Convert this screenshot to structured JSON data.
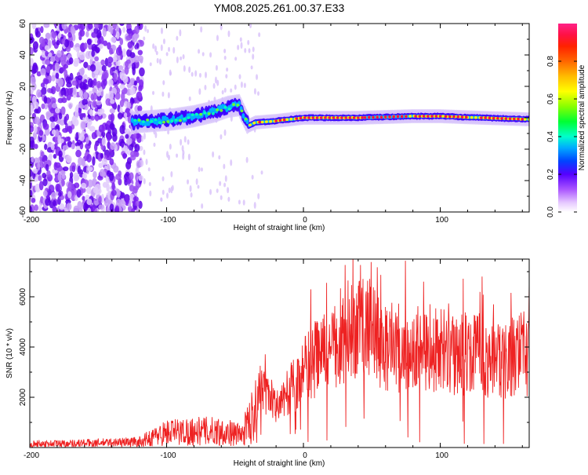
{
  "chart_data": [
    {
      "type": "heatmap",
      "title": "YM08.2025.261.00.37.E33",
      "xlabel": "Height of straight line (km)",
      "ylabel": "Frequency (Hz)",
      "xlim": [
        -200,
        165
      ],
      "ylim": [
        -60,
        60
      ],
      "xticks": [
        -200,
        -100,
        0,
        100
      ],
      "yticks": [
        60,
        40,
        20,
        0,
        -20,
        -40,
        -60
      ],
      "colorbar": {
        "label": "Normalized spectral amplitude",
        "range": [
          0,
          1
        ],
        "ticks": [
          0.0,
          0.2,
          0.4,
          0.6,
          0.8
        ]
      },
      "ridge": [
        {
          "x": -125,
          "y": -3
        },
        {
          "x": -110,
          "y": -2
        },
        {
          "x": -95,
          "y": -1
        },
        {
          "x": -80,
          "y": 1
        },
        {
          "x": -65,
          "y": 4
        },
        {
          "x": -55,
          "y": 7
        },
        {
          "x": -47,
          "y": 8
        },
        {
          "x": -40,
          "y": -5
        },
        {
          "x": -35,
          "y": -3
        },
        {
          "x": -20,
          "y": -2
        },
        {
          "x": -10,
          "y": -1
        },
        {
          "x": 0,
          "y": 0
        },
        {
          "x": 40,
          "y": 0
        },
        {
          "x": 80,
          "y": 1
        },
        {
          "x": 100,
          "y": 1
        },
        {
          "x": 130,
          "y": 0
        },
        {
          "x": 165,
          "y": -1
        }
      ]
    },
    {
      "type": "line",
      "xlabel": "Height of straight line (km)",
      "ylabel": "SNR (10 * v/v)",
      "xlim": [
        -200,
        165
      ],
      "ylim": [
        0,
        7500
      ],
      "xticks": [
        -200,
        -100,
        0,
        100
      ],
      "yticks": [
        2000,
        4000,
        6000
      ],
      "series": [
        {
          "name": "SNR",
          "color": "#ee2222",
          "x": [
            -200,
            -170,
            -140,
            -120,
            -100,
            -80,
            -60,
            -45,
            -35,
            -32,
            -28,
            -20,
            -10,
            0,
            10,
            20,
            30,
            40,
            50,
            60,
            80,
            100,
            120,
            140,
            150,
            160,
            165
          ],
          "y": [
            150,
            170,
            200,
            230,
            600,
            650,
            650,
            500,
            1500,
            2600,
            2000,
            1700,
            2300,
            3000,
            3600,
            3800,
            4200,
            4800,
            4600,
            4000,
            3900,
            3850,
            3700,
            3550,
            3500,
            3800,
            3600
          ]
        }
      ]
    }
  ]
}
